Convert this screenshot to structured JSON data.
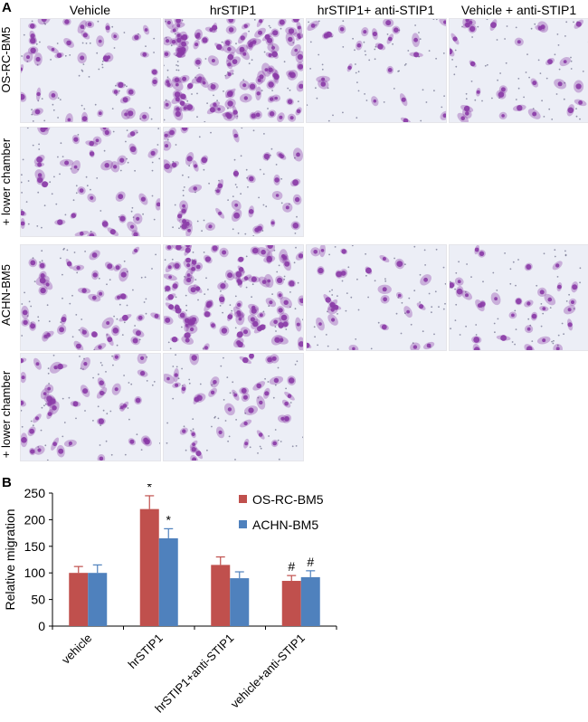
{
  "panel_a": {
    "letter": "A",
    "column_headers": [
      "Vehicle",
      "hrSTIP1",
      "hrSTIP1+ anti-STIP1",
      "Vehicle + anti-STIP1"
    ],
    "row_labels": [
      "OS-RC-BM5",
      "+ lower chamber",
      "ACHN-BM5",
      "+ lower chamber"
    ],
    "stain_color": "#8a3aa6",
    "background_color": "#eceef6"
  },
  "panel_b": {
    "letter": "B"
  },
  "chart_data": {
    "type": "bar",
    "title": "",
    "ylabel": "Relative migration",
    "xlabel": "",
    "ylim": [
      0,
      250
    ],
    "yticks": [
      0,
      50,
      100,
      150,
      200,
      250
    ],
    "categories": [
      "vehicle",
      "hrSTIP1",
      "hrSTIP1+anti-STIP1",
      "vehicle+anti-STIP1"
    ],
    "series": [
      {
        "name": "OS-RC-BM5",
        "color": "#c0504d",
        "values": [
          100,
          220,
          115,
          85
        ],
        "errors": [
          12,
          25,
          15,
          10
        ]
      },
      {
        "name": "ACHN-BM5",
        "color": "#4f81bd",
        "values": [
          100,
          165,
          90,
          92
        ],
        "errors": [
          15,
          18,
          12,
          12
        ]
      }
    ],
    "annotations": [
      {
        "category": 1,
        "series": 0,
        "text": "*"
      },
      {
        "category": 1,
        "series": 1,
        "text": "*"
      },
      {
        "category": 3,
        "series": 0,
        "text": "#"
      },
      {
        "category": 3,
        "series": 1,
        "text": "#"
      }
    ],
    "legend_position": "top-right"
  }
}
